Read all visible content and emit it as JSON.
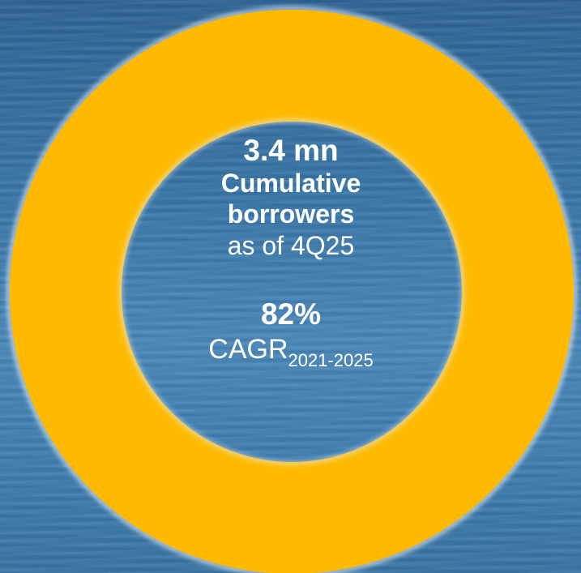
{
  "headline_value": "3.4 mn",
  "headline_line1": "Cumulative",
  "headline_line2": "borrowers",
  "headline_period": "as of 4Q25",
  "growth_value": "82%",
  "growth_label": "CAGR",
  "growth_range": "2021-2025",
  "colors": {
    "ring": "#FFBA00",
    "ring_edge": "#d9e6f0",
    "water": "#3a77a8",
    "text": "#ffffff"
  }
}
